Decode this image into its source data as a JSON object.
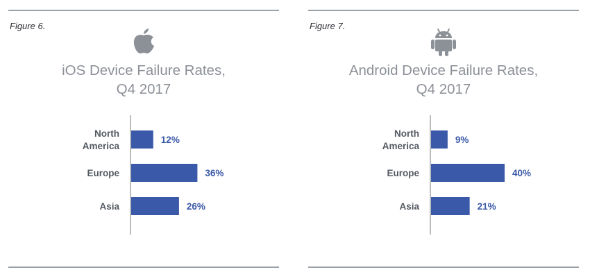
{
  "panels": [
    {
      "figure_label": "Figure 6.",
      "logo_icon": "apple-icon",
      "title_lines": [
        "iOS Device Failure Rates,",
        "Q4 2017"
      ]
    },
    {
      "figure_label": "Figure 7.",
      "logo_icon": "android-icon",
      "title_lines": [
        "Android Device Failure Rates,",
        "Q4 2017"
      ]
    }
  ],
  "colors": {
    "bar": "#3a59a8",
    "axis": "#8c9097",
    "title": "#8c9097",
    "rule": "#9aa0a8"
  },
  "chart_data": [
    {
      "type": "bar",
      "orientation": "horizontal",
      "title": "iOS Device Failure Rates, Q4 2017",
      "categories": [
        [
          "North",
          "America"
        ],
        [
          "Europe"
        ],
        [
          "Asia"
        ]
      ],
      "values": [
        12,
        36,
        26
      ],
      "value_labels": [
        "12%",
        "36%",
        "26%"
      ],
      "xlim": [
        0,
        40
      ],
      "grid": false
    },
    {
      "type": "bar",
      "orientation": "horizontal",
      "title": "Android Device Failure Rates, Q4 2017",
      "categories": [
        [
          "North",
          "America"
        ],
        [
          "Europe"
        ],
        [
          "Asia"
        ]
      ],
      "values": [
        9,
        40,
        21
      ],
      "value_labels": [
        "9%",
        "40%",
        "21%"
      ],
      "xlim": [
        0,
        40
      ],
      "grid": false
    }
  ]
}
